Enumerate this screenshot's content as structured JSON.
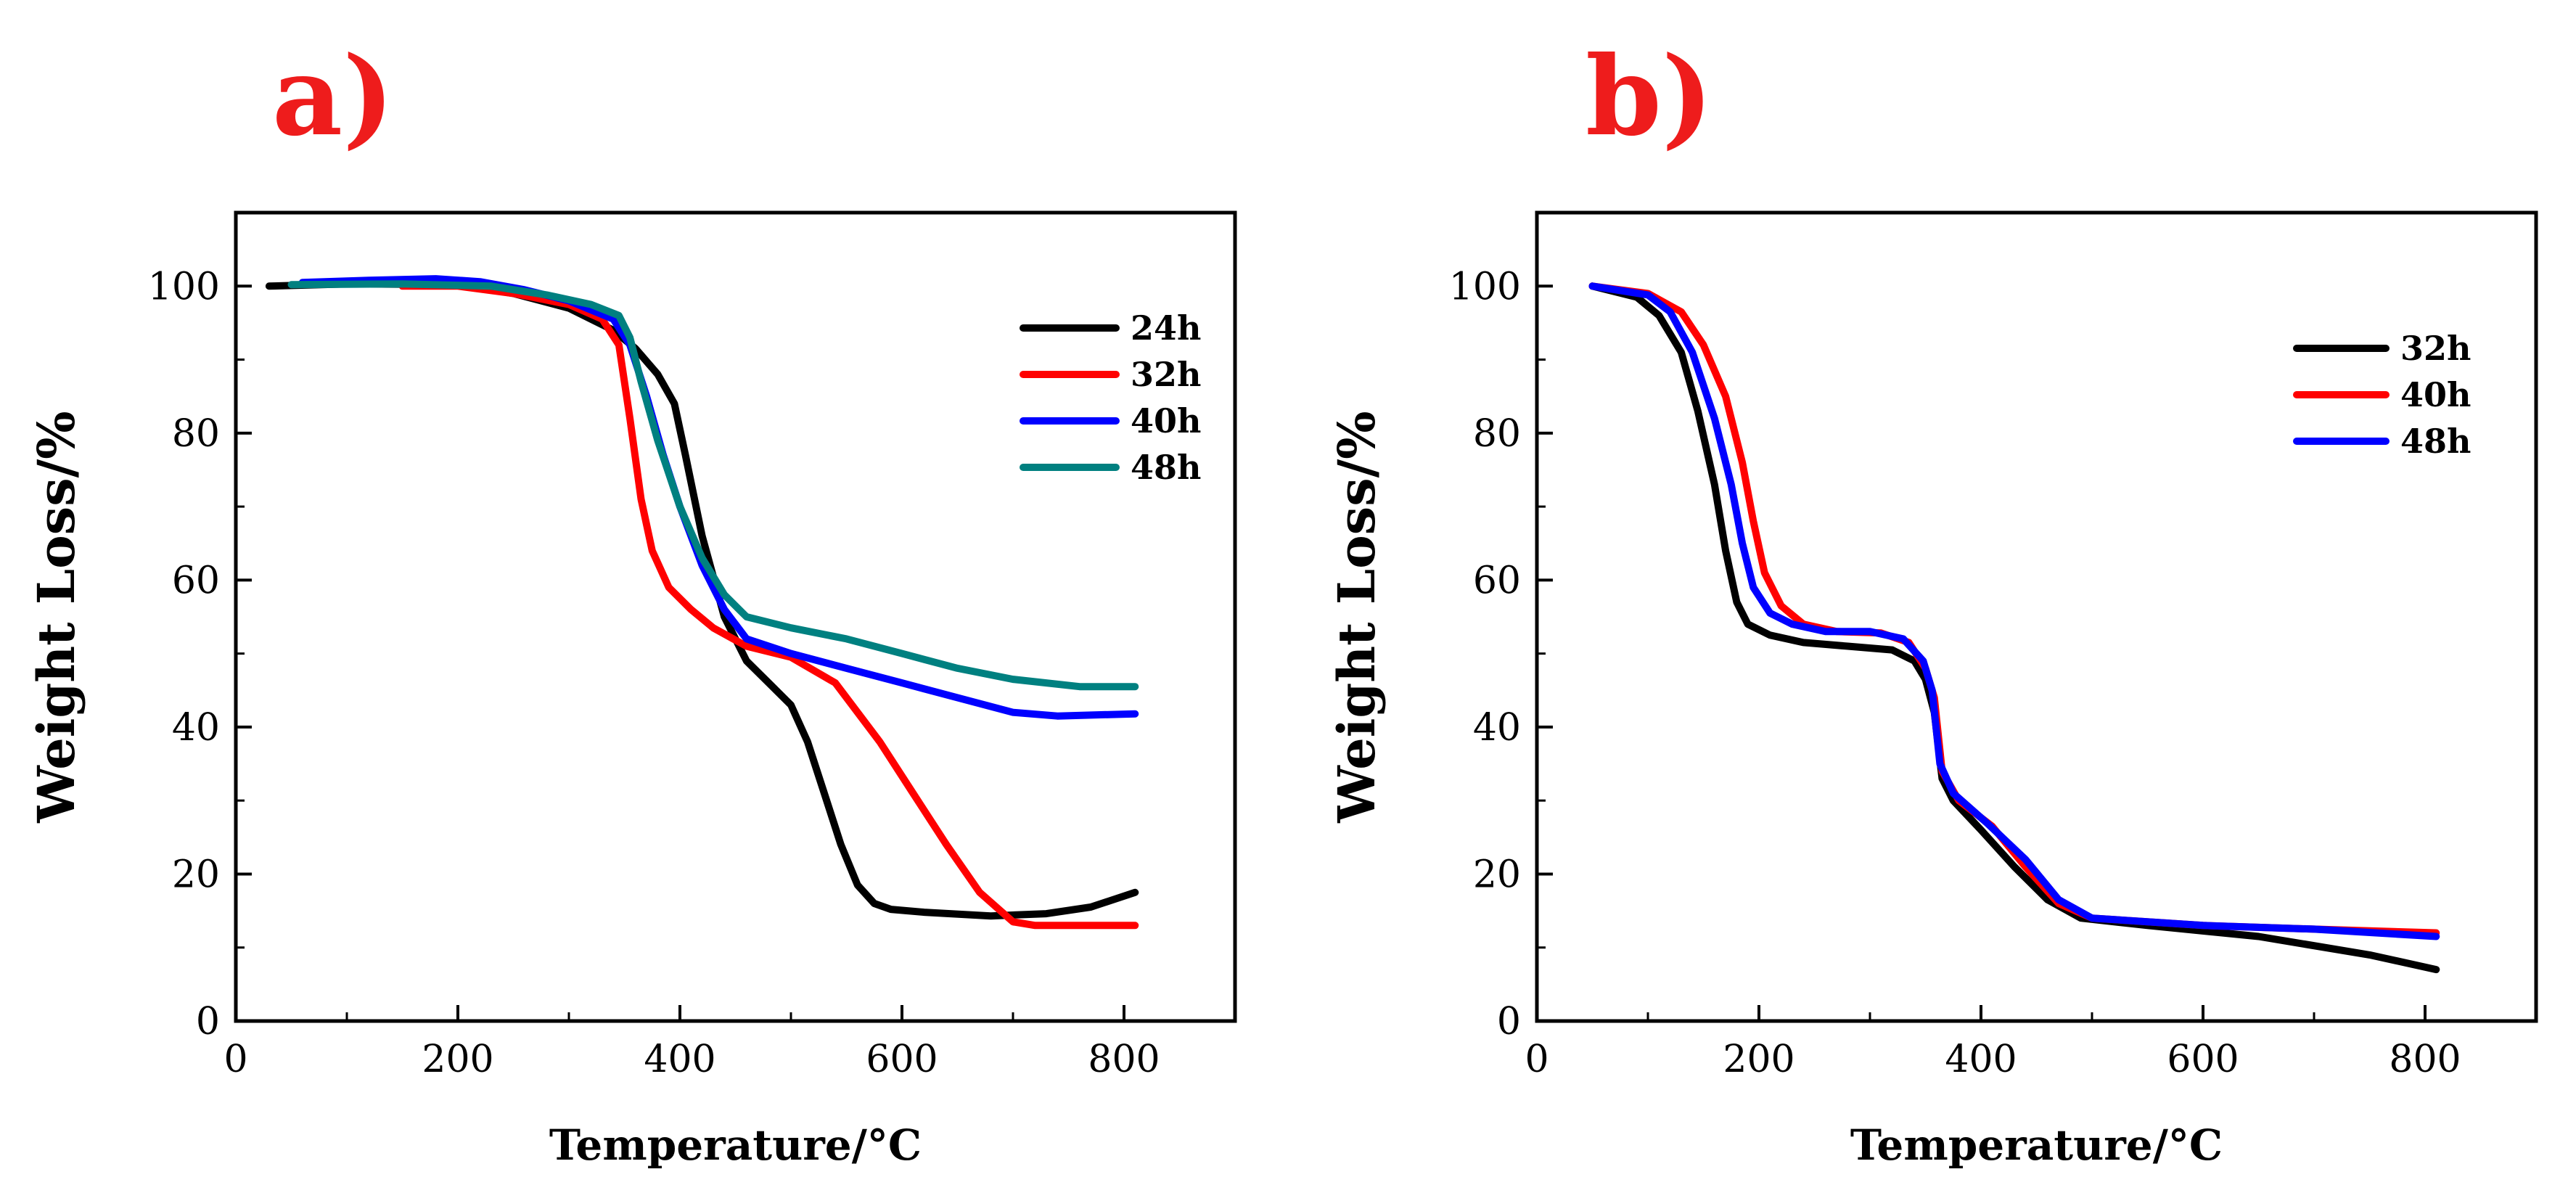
{
  "chart_data": [
    {
      "type": "line",
      "panel_label": "a)",
      "xlabel": "Temperature/°C",
      "ylabel": "Weight Loss/%",
      "xlim": [
        0,
        900
      ],
      "ylim": [
        0,
        110
      ],
      "xticks": [
        0,
        200,
        400,
        600,
        800
      ],
      "yticks": [
        0,
        20,
        40,
        60,
        80,
        100
      ],
      "grid": false,
      "legend_position": "top-right",
      "series": [
        {
          "name": "24h",
          "color": "#000000",
          "points": [
            [
              30,
              100
            ],
            [
              100,
              100.3
            ],
            [
              200,
              100.2
            ],
            [
              250,
              99
            ],
            [
              300,
              97
            ],
            [
              340,
              94
            ],
            [
              360,
              91.5
            ],
            [
              380,
              88
            ],
            [
              395,
              84
            ],
            [
              405,
              77
            ],
            [
              420,
              66
            ],
            [
              440,
              55
            ],
            [
              460,
              49
            ],
            [
              480,
              46
            ],
            [
              500,
              43
            ],
            [
              515,
              38
            ],
            [
              530,
              31
            ],
            [
              545,
              24
            ],
            [
              560,
              18.5
            ],
            [
              575,
              16
            ],
            [
              590,
              15.2
            ],
            [
              620,
              14.8
            ],
            [
              680,
              14.3
            ],
            [
              730,
              14.6
            ],
            [
              770,
              15.5
            ],
            [
              810,
              17.5
            ]
          ]
        },
        {
          "name": "32h",
          "color": "#ff0000",
          "points": [
            [
              150,
              100
            ],
            [
              200,
              100
            ],
            [
              250,
              99
            ],
            [
              300,
              97.5
            ],
            [
              330,
              95.5
            ],
            [
              345,
              92
            ],
            [
              355,
              82
            ],
            [
              365,
              71
            ],
            [
              375,
              64
            ],
            [
              390,
              59
            ],
            [
              410,
              56
            ],
            [
              430,
              53.5
            ],
            [
              460,
              51
            ],
            [
              500,
              49.5
            ],
            [
              540,
              46
            ],
            [
              580,
              38
            ],
            [
              610,
              31
            ],
            [
              640,
              24
            ],
            [
              670,
              17.5
            ],
            [
              700,
              13.5
            ],
            [
              720,
              13
            ],
            [
              760,
              13
            ],
            [
              810,
              13
            ]
          ]
        },
        {
          "name": "40h",
          "color": "#0000ff",
          "points": [
            [
              60,
              100.5
            ],
            [
              120,
              100.8
            ],
            [
              180,
              101
            ],
            [
              220,
              100.6
            ],
            [
              260,
              99.5
            ],
            [
              300,
              98
            ],
            [
              340,
              95.5
            ],
            [
              355,
              92
            ],
            [
              370,
              85
            ],
            [
              385,
              77
            ],
            [
              400,
              70
            ],
            [
              420,
              62
            ],
            [
              440,
              56
            ],
            [
              460,
              52
            ],
            [
              500,
              50
            ],
            [
              550,
              48
            ],
            [
              600,
              46
            ],
            [
              650,
              44
            ],
            [
              700,
              42
            ],
            [
              740,
              41.5
            ],
            [
              810,
              41.8
            ]
          ]
        },
        {
          "name": "48h",
          "color": "#008080",
          "points": [
            [
              50,
              100.2
            ],
            [
              150,
              100.3
            ],
            [
              230,
              100
            ],
            [
              280,
              98.8
            ],
            [
              320,
              97.5
            ],
            [
              345,
              96
            ],
            [
              355,
              93
            ],
            [
              365,
              87
            ],
            [
              380,
              79
            ],
            [
              400,
              70
            ],
            [
              420,
              63
            ],
            [
              440,
              58
            ],
            [
              460,
              55
            ],
            [
              500,
              53.5
            ],
            [
              550,
              52
            ],
            [
              600,
              50
            ],
            [
              650,
              48
            ],
            [
              700,
              46.5
            ],
            [
              760,
              45.5
            ],
            [
              810,
              45.5
            ]
          ]
        }
      ]
    },
    {
      "type": "line",
      "panel_label": "b)",
      "xlabel": "Temperature/°C",
      "ylabel": "Weight Loss/%",
      "xlim": [
        0,
        900
      ],
      "ylim": [
        0,
        110
      ],
      "xticks": [
        0,
        200,
        400,
        600,
        800
      ],
      "yticks": [
        0,
        20,
        40,
        60,
        80,
        100
      ],
      "grid": false,
      "legend_position": "top-right",
      "series": [
        {
          "name": "32h",
          "color": "#000000",
          "points": [
            [
              50,
              100
            ],
            [
              90,
              98.5
            ],
            [
              110,
              96
            ],
            [
              130,
              91
            ],
            [
              145,
              83
            ],
            [
              160,
              73
            ],
            [
              170,
              64
            ],
            [
              180,
              57
            ],
            [
              190,
              54
            ],
            [
              210,
              52.5
            ],
            [
              240,
              51.5
            ],
            [
              280,
              51
            ],
            [
              320,
              50.5
            ],
            [
              340,
              49
            ],
            [
              350,
              46.5
            ],
            [
              358,
              42
            ],
            [
              365,
              33
            ],
            [
              375,
              30
            ],
            [
              400,
              26
            ],
            [
              430,
              21
            ],
            [
              460,
              16.5
            ],
            [
              490,
              14
            ],
            [
              550,
              13
            ],
            [
              650,
              11.5
            ],
            [
              750,
              9
            ],
            [
              810,
              7
            ]
          ]
        },
        {
          "name": "40h",
          "color": "#ff0000",
          "points": [
            [
              50,
              100
            ],
            [
              100,
              99
            ],
            [
              130,
              96.5
            ],
            [
              150,
              92
            ],
            [
              170,
              85
            ],
            [
              185,
              76
            ],
            [
              195,
              68
            ],
            [
              205,
              61
            ],
            [
              220,
              56.5
            ],
            [
              240,
              54
            ],
            [
              270,
              53
            ],
            [
              310,
              52.8
            ],
            [
              335,
              51.5
            ],
            [
              350,
              48
            ],
            [
              358,
              44
            ],
            [
              365,
              34
            ],
            [
              380,
              30
            ],
            [
              410,
              26.5
            ],
            [
              440,
              21
            ],
            [
              470,
              16
            ],
            [
              500,
              14
            ],
            [
              600,
              13
            ],
            [
              700,
              12.5
            ],
            [
              810,
              12
            ]
          ]
        },
        {
          "name": "48h",
          "color": "#0000ff",
          "points": [
            [
              50,
              100
            ],
            [
              100,
              98.8
            ],
            [
              120,
              96.5
            ],
            [
              140,
              91
            ],
            [
              160,
              82
            ],
            [
              175,
              73
            ],
            [
              185,
              65
            ],
            [
              195,
              59
            ],
            [
              210,
              55.5
            ],
            [
              230,
              54
            ],
            [
              260,
              53
            ],
            [
              300,
              53
            ],
            [
              330,
              52
            ],
            [
              348,
              49
            ],
            [
              356,
              45
            ],
            [
              363,
              35
            ],
            [
              375,
              31
            ],
            [
              405,
              27
            ],
            [
              440,
              22
            ],
            [
              470,
              16.5
            ],
            [
              500,
              14
            ],
            [
              600,
              13
            ],
            [
              700,
              12.5
            ],
            [
              810,
              11.5
            ]
          ]
        }
      ]
    }
  ]
}
